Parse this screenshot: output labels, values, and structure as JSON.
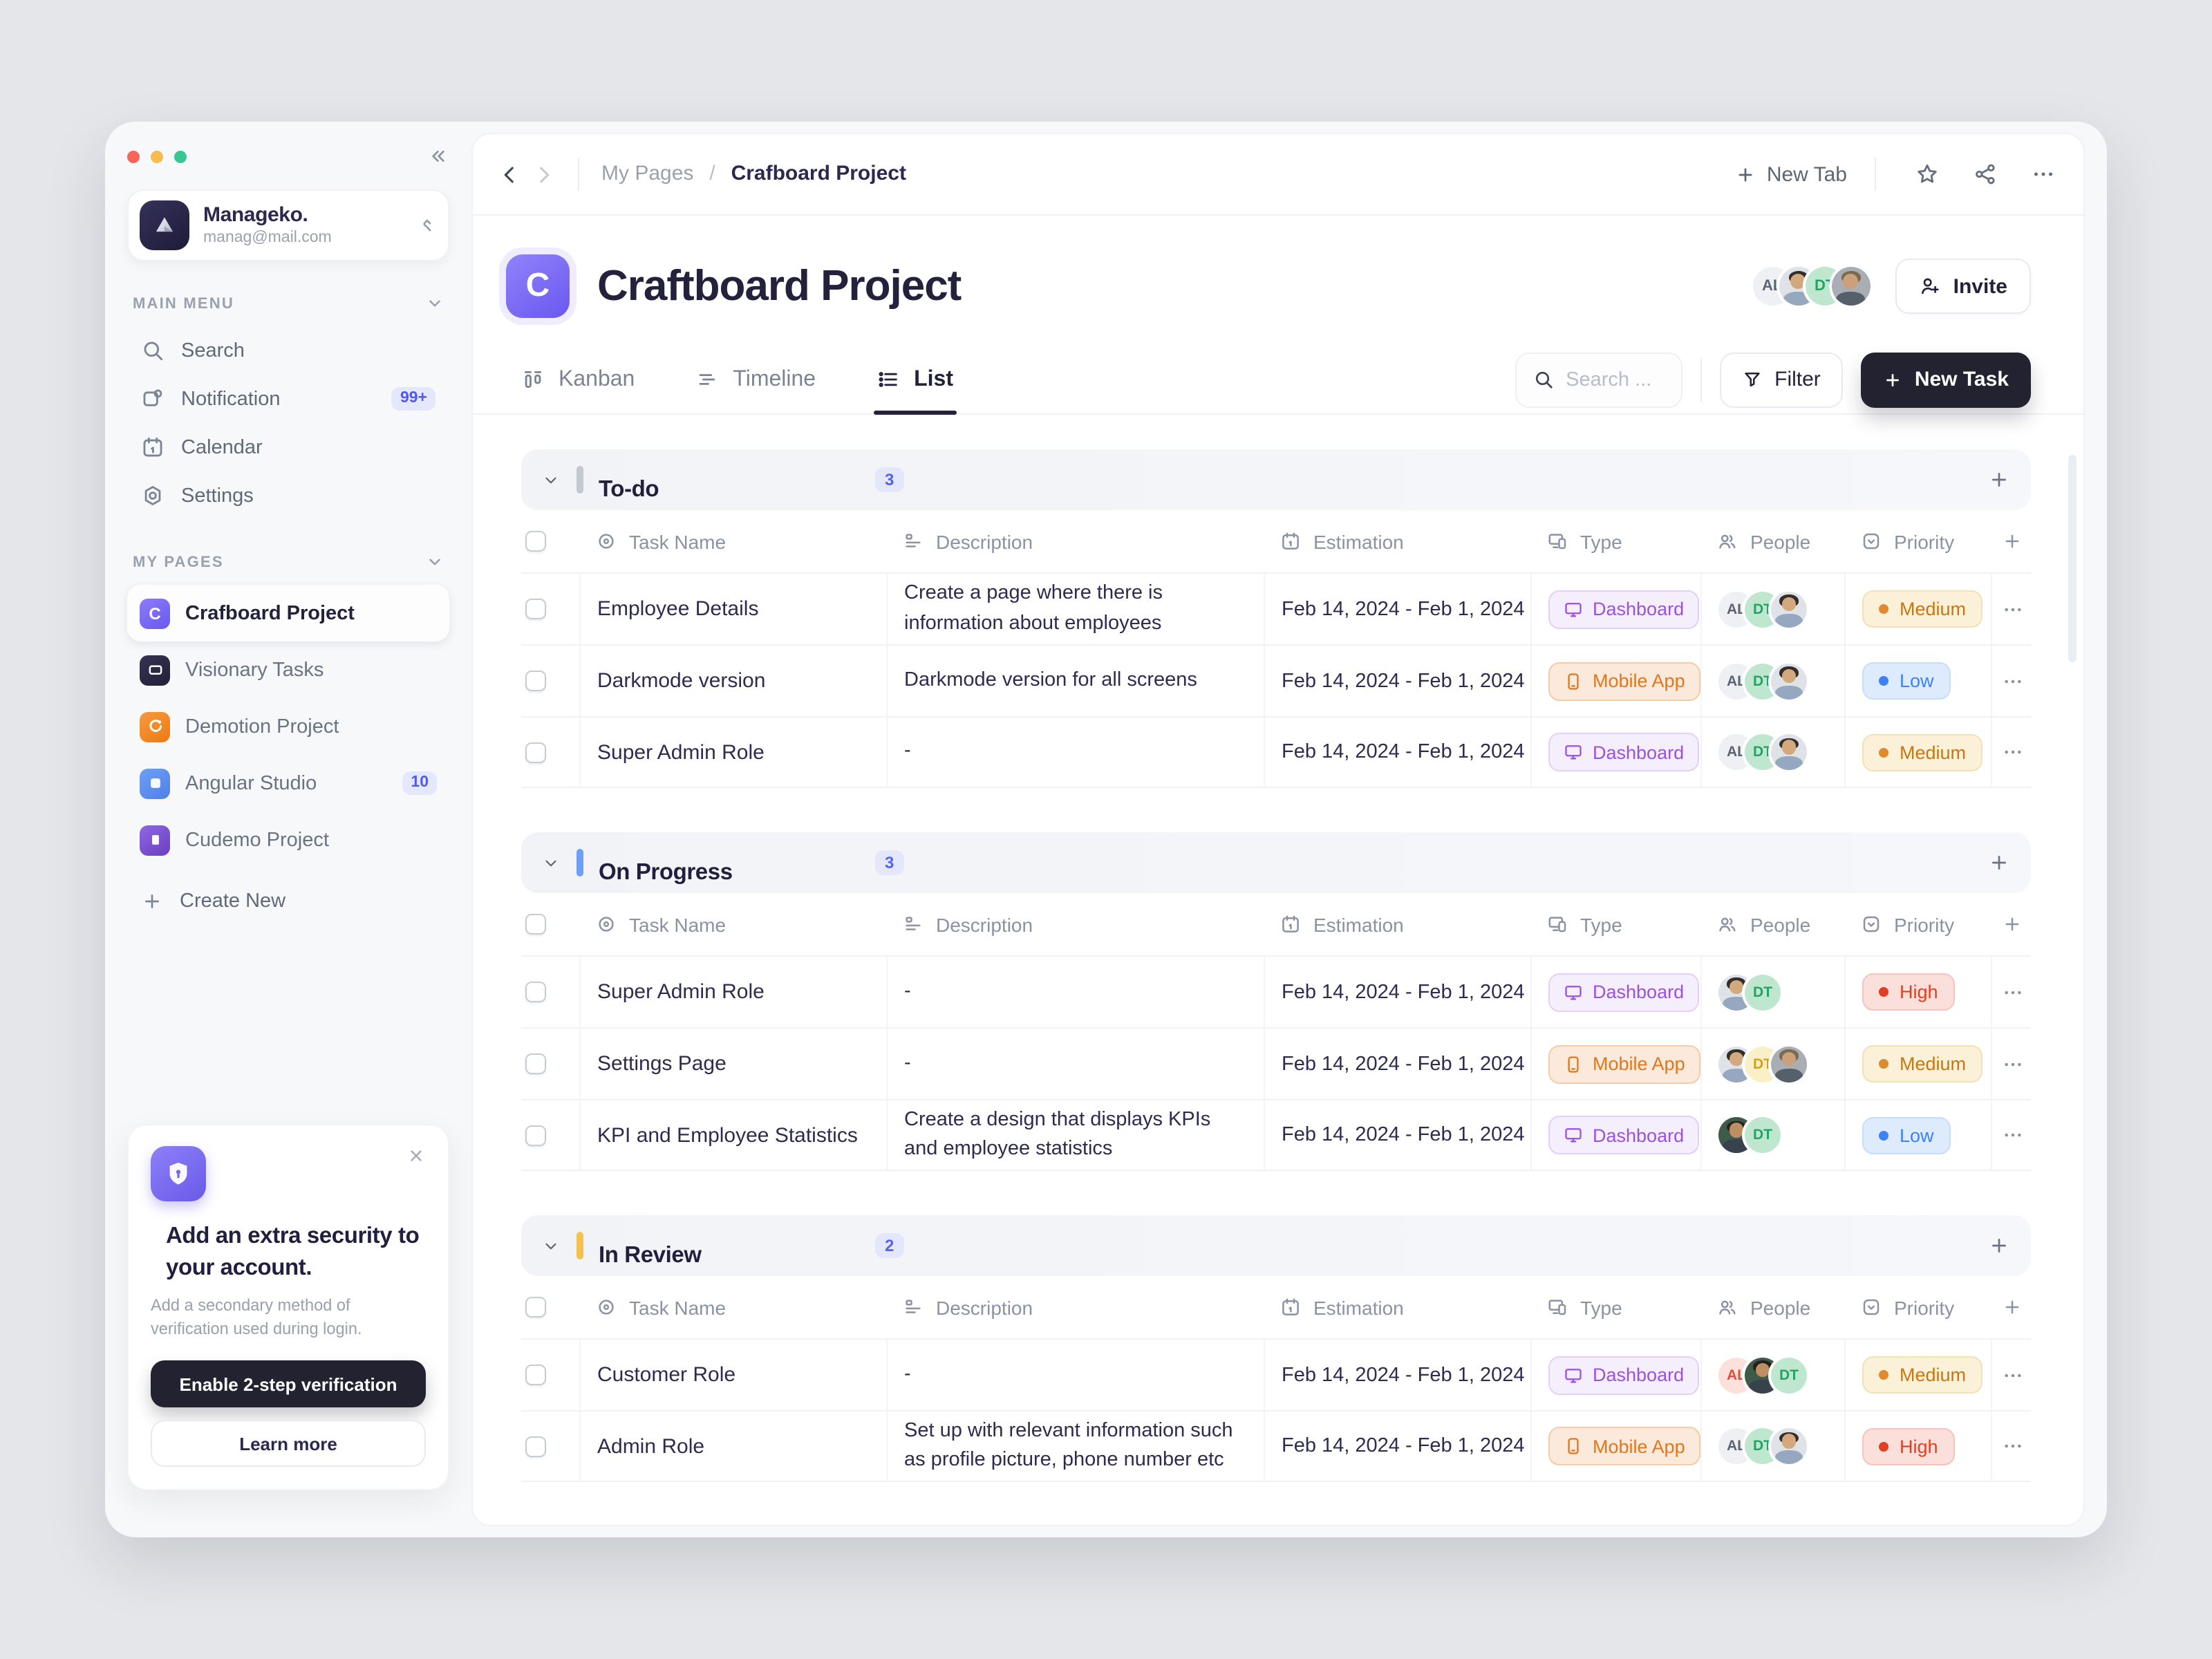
{
  "workspace": {
    "name": "Manageko.",
    "email": "manag@mail.com"
  },
  "sidebar": {
    "main_menu_label": "MAIN MENU",
    "main_menu": [
      {
        "label": "Search",
        "icon": "search",
        "badge": null
      },
      {
        "label": "Notification",
        "icon": "notification",
        "badge": "99+"
      },
      {
        "label": "Calendar",
        "icon": "calendar",
        "badge": null
      },
      {
        "label": "Settings",
        "icon": "settings",
        "badge": null
      }
    ],
    "my_pages_label": "MY PAGES",
    "pages": [
      {
        "label": "Crafboard Project",
        "active": true,
        "badge": null,
        "icon": {
          "kind": "letter",
          "text": "C",
          "bg": "linear-gradient(145deg,#8B7DF8,#6A58F0)"
        }
      },
      {
        "label": "Visionary Tasks",
        "active": false,
        "badge": null,
        "icon": {
          "kind": "glyph",
          "glyph": "window",
          "bg": "linear-gradient(145deg,#373352,#211F38)"
        }
      },
      {
        "label": "Demotion Project",
        "active": false,
        "badge": null,
        "icon": {
          "kind": "glyph",
          "glyph": "swirl",
          "bg": "linear-gradient(145deg,#F49A3E,#EE7A14)"
        }
      },
      {
        "label": "Angular Studio",
        "active": false,
        "badge": "10",
        "icon": {
          "kind": "glyph",
          "glyph": "square",
          "bg": "linear-gradient(145deg,#6FA0F6,#4E7FE8)"
        }
      },
      {
        "label": "Cudemo Project",
        "active": false,
        "badge": null,
        "icon": {
          "kind": "glyph",
          "glyph": "bar",
          "bg": "linear-gradient(145deg,#8F67E2,#6A3FC2)"
        }
      }
    ],
    "create_new_label": "Create New",
    "security_card": {
      "title": "Add an extra security to your account.",
      "subtitle": "Add a secondary method of verification used during login.",
      "primary_button": "Enable 2-step verification",
      "secondary_button": "Learn more"
    }
  },
  "header": {
    "breadcrumb": {
      "parent": "My Pages",
      "separator": "/",
      "current": "Crafboard Project"
    },
    "new_tab_label": "New Tab"
  },
  "project": {
    "title": "Craftboard Project",
    "letter": "C",
    "invite_label": "Invite",
    "avatars": [
      "AL",
      "photo_a",
      "DT",
      "photo_b"
    ]
  },
  "tabs": [
    {
      "label": "Kanban",
      "icon": "kanban",
      "active": false
    },
    {
      "label": "Timeline",
      "icon": "timeline",
      "active": false
    },
    {
      "label": "List",
      "icon": "list",
      "active": true
    }
  ],
  "toolbar": {
    "search_placeholder": "Search ...",
    "filter_label": "Filter",
    "new_task_label": "New Task"
  },
  "avatar_defs": {
    "AL": {
      "kind": "initials",
      "text": "AL",
      "bg": "#EEF0F3",
      "fg": "#5A6472"
    },
    "AL_red": {
      "kind": "initials",
      "text": "AL",
      "bg": "#FBE0DC",
      "fg": "#DD4F3A"
    },
    "DT": {
      "kind": "initials",
      "text": "DT",
      "bg": "#BFE7D0",
      "fg": "#1FA565"
    },
    "DT_yellow": {
      "kind": "initials",
      "text": "DT",
      "bg": "#FAF0C8",
      "fg": "#D7A013"
    },
    "photo_a": {
      "kind": "photo",
      "bg": "#DFE3E8",
      "hair": "#332E29",
      "skin": "#D3A87C",
      "shirt": "#96A8C0"
    },
    "photo_b": {
      "kind": "photo",
      "bg": "#A9AEB4",
      "hair": "#7A6A4F",
      "skin": "#CBA07A",
      "shirt": "#55606B"
    },
    "photo_c": {
      "kind": "photo",
      "bg": "#3E5A49",
      "hair": "#26211C",
      "skin": "#BE8F62",
      "shirt": "#37424C"
    }
  },
  "styles": {
    "type": {
      "Dashboard": {
        "bg": "#F5EEFD",
        "border": "#E3CFF8",
        "text": "#9B51E0",
        "icon": "monitor"
      },
      "Mobile App": {
        "bg": "#FBEADC",
        "border": "#F5CBA3",
        "text": "#E1761B",
        "icon": "phone"
      }
    },
    "priority": {
      "Medium": {
        "bg": "#FBF1D9",
        "border": "#F2E0B6",
        "text": "#C8770F",
        "dot": "#E08A2E"
      },
      "Low": {
        "bg": "#DDEBFD",
        "border": "#C6DDFB",
        "text": "#3C82F6",
        "dot": "#3C82F6"
      },
      "High": {
        "bg": "#FBDFDB",
        "border": "#F6C3BC",
        "text": "#E23E22",
        "dot": "#E23E22"
      }
    }
  },
  "table": {
    "columns": [
      {
        "label": "Task Name",
        "icon": "target"
      },
      {
        "label": "Description",
        "icon": "desc-lines"
      },
      {
        "label": "Estimation",
        "icon": "calendar"
      },
      {
        "label": "Type",
        "icon": "device"
      },
      {
        "label": "People",
        "icon": "people"
      },
      {
        "label": "Priority",
        "icon": "priority-square"
      }
    ],
    "sections": [
      {
        "title": "To-do",
        "count": "3",
        "marker_color": "#C3C9D3",
        "rows": [
          {
            "name": "Employee Details",
            "description": "Create a page where there is information about employees",
            "estimation": "Feb 14, 2024 - Feb 1, 2024",
            "type": "Dashboard",
            "people": [
              "AL",
              "DT",
              "photo_a"
            ],
            "priority": "Medium"
          },
          {
            "name": "Darkmode version",
            "description": "Darkmode version for all screens",
            "estimation": "Feb 14, 2024 - Feb 1, 2024",
            "type": "Mobile App",
            "people": [
              "AL",
              "DT",
              "photo_a"
            ],
            "priority": "Low"
          },
          {
            "name": "Super Admin Role",
            "description": "-",
            "estimation": "Feb 14, 2024 - Feb 1, 2024",
            "type": "Dashboard",
            "people": [
              "AL",
              "DT",
              "photo_a"
            ],
            "priority": "Medium"
          }
        ]
      },
      {
        "title": "On Progress",
        "count": "3",
        "marker_color": "#6D9FF2",
        "rows": [
          {
            "name": "Super Admin Role",
            "description": "-",
            "estimation": "Feb 14, 2024 - Feb 1, 2024",
            "type": "Dashboard",
            "people": [
              "photo_a",
              "DT"
            ],
            "priority": "High"
          },
          {
            "name": "Settings Page",
            "description": "-",
            "estimation": "Feb 14, 2024 - Feb 1, 2024",
            "type": "Mobile App",
            "people": [
              "photo_a",
              "DT_yellow",
              "photo_b"
            ],
            "priority": "Medium"
          },
          {
            "name": "KPI and Employee Statistics",
            "description": "Create a design that displays KPIs and employee statistics",
            "estimation": "Feb 14, 2024 - Feb 1, 2024",
            "type": "Dashboard",
            "people": [
              "photo_c",
              "DT"
            ],
            "priority": "Low"
          }
        ]
      },
      {
        "title": "In Review",
        "count": "2",
        "marker_color": "#F2C14E",
        "rows": [
          {
            "name": "Customer Role",
            "description": "-",
            "estimation": "Feb 14, 2024 - Feb 1, 2024",
            "type": "Dashboard",
            "people": [
              "AL_red",
              "photo_c",
              "DT"
            ],
            "priority": "Medium"
          },
          {
            "name": "Admin Role",
            "description": "Set up with relevant information such as profile picture, phone number etc",
            "estimation": "Feb 14, 2024 - Feb 1, 2024",
            "type": "Mobile App",
            "people": [
              "AL",
              "DT",
              "photo_a"
            ],
            "priority": "High"
          }
        ]
      }
    ]
  }
}
